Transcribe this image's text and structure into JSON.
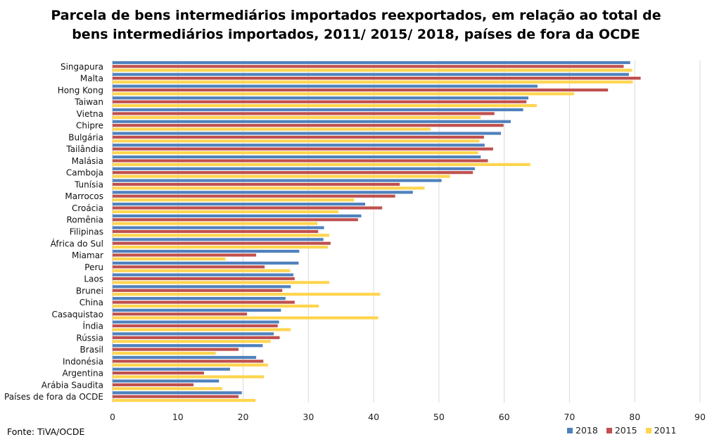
{
  "title_lines": [
    "Parcela de bens intermediários importados reexportados, em relação ao total de",
    "bens intermediários importados, 2011/ 2015/ 2018, países de fora da OCDE"
  ],
  "source": "Fonte: TiVA/OCDE",
  "colors": {
    "2018": "#4F81BD",
    "2015": "#C0504D",
    "2011": "#FFD54F",
    "grid": "#d9d9d9"
  },
  "chart_data": {
    "type": "bar",
    "orientation": "horizontal",
    "title": "Parcela de bens intermediários importados reexportados, em relação ao total de bens intermediários importados, 2011/ 2015/ 2018, países de fora da OCDE",
    "xlabel": "",
    "ylabel": "",
    "xlim": [
      0,
      90
    ],
    "xticks": [
      0,
      10,
      20,
      30,
      40,
      50,
      60,
      70,
      80,
      90
    ],
    "grid": true,
    "legend_position": "bottom-right",
    "categories": [
      "Singapura",
      "Malta",
      "Hong Kong",
      "Taiwan",
      "Vietna",
      "Chipre",
      "Bulgária",
      "Tailândia",
      "Malásia",
      "Camboja",
      "Tunísia",
      "Marrocos",
      "Croácia",
      "Romênia",
      "Filipinas",
      "África do Sul",
      "Miamar",
      "Peru",
      "Laos",
      "Brunei",
      "China",
      "Casaquistao",
      "Índia",
      "Rússia",
      "Brasil",
      "Indonésia",
      "Argentina",
      "Arábia Saudita",
      "Países de fora da OCDE"
    ],
    "series": [
      {
        "name": "2018",
        "values": [
          79.3,
          79.1,
          65.1,
          63.7,
          62.9,
          61.0,
          59.5,
          57.0,
          56.4,
          55.5,
          50.4,
          46.0,
          38.7,
          38.1,
          32.4,
          32.3,
          28.6,
          28.5,
          27.7,
          27.3,
          26.5,
          25.8,
          25.5,
          24.7,
          23.0,
          22.0,
          18.0,
          16.3,
          19.8
        ]
      },
      {
        "name": "2015",
        "values": [
          78.3,
          80.9,
          75.9,
          63.4,
          58.5,
          59.9,
          56.9,
          58.3,
          57.5,
          55.2,
          44.0,
          43.3,
          41.3,
          37.6,
          31.5,
          33.4,
          22.0,
          23.3,
          27.9,
          26.0,
          27.9,
          20.6,
          25.3,
          25.6,
          19.3,
          23.1,
          14.0,
          12.4,
          19.3
        ]
      },
      {
        "name": "2011",
        "values": [
          79.6,
          79.7,
          70.7,
          65.0,
          56.4,
          48.7,
          56.2,
          56.0,
          64.0,
          51.7,
          47.8,
          37.0,
          34.6,
          31.4,
          33.2,
          33.0,
          17.3,
          27.2,
          33.2,
          41.0,
          31.6,
          40.7,
          27.3,
          24.2,
          15.8,
          23.8,
          23.2,
          16.8,
          21.9
        ]
      }
    ]
  }
}
